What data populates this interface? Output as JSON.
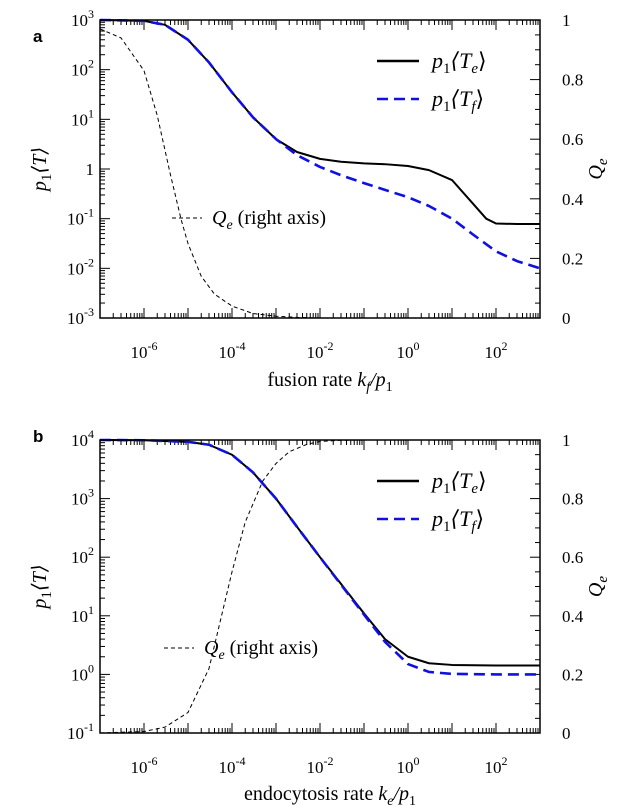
{
  "chart_data": [
    {
      "panel": "a",
      "type": "line",
      "title": "",
      "xlabel": {
        "main": "fusion rate ",
        "var": "k",
        "sub": "f",
        "tail": "/p",
        "tail_sub": "1"
      },
      "ylabel": {
        "var": "p",
        "sub": "1",
        "rest": "⟨T⟩"
      },
      "y2label": {
        "var": "Q",
        "sub": "e"
      },
      "xscale": "log",
      "yscale": "log",
      "xlim": [
        1e-07,
        1000
      ],
      "ylim": [
        0.001,
        1000
      ],
      "y2lim": [
        0,
        1
      ],
      "xticks": [
        {
          "value": 1e-06,
          "base": "10",
          "exp": "-6"
        },
        {
          "value": 0.0001,
          "base": "10",
          "exp": "-4"
        },
        {
          "value": 0.01,
          "base": "10",
          "exp": "-2"
        },
        {
          "value": 1,
          "base": "10",
          "exp": "0"
        },
        {
          "value": 100,
          "base": "10",
          "exp": "2"
        }
      ],
      "yticks": [
        {
          "value": 0.001,
          "base": "10",
          "exp": "-3"
        },
        {
          "value": 0.01,
          "base": "10",
          "exp": "-2"
        },
        {
          "value": 0.1,
          "base": "10",
          "exp": "-1"
        },
        {
          "value": 1,
          "base": "1",
          "exp": ""
        },
        {
          "value": 10,
          "base": "10",
          "exp": "1"
        },
        {
          "value": 100,
          "base": "10",
          "exp": "2"
        },
        {
          "value": 1000,
          "base": "10",
          "exp": "3"
        }
      ],
      "y2ticks": [
        {
          "value": 0,
          "label": "0"
        },
        {
          "value": 0.2,
          "label": "0.2"
        },
        {
          "value": 0.4,
          "label": "0.4"
        },
        {
          "value": 0.6,
          "label": "0.6"
        },
        {
          "value": 0.8,
          "label": "0.8"
        },
        {
          "value": 1,
          "label": "1"
        }
      ],
      "legend": [
        {
          "var": "p",
          "sub": "1",
          "rest": "⟨T",
          "sub2": "e",
          "close": "⟩",
          "style": "solid",
          "color": "#000000"
        },
        {
          "var": "p",
          "sub": "1",
          "rest": "⟨T",
          "sub2": "f",
          "close": "⟩",
          "style": "dashed",
          "color": "#1010e0"
        }
      ],
      "annotation": {
        "var": "Q",
        "sub": "e",
        "rest": " (right axis)"
      },
      "series": [
        {
          "key": "Te",
          "axis": "left",
          "style": "solid",
          "color": "#000000",
          "x": [
            1e-07,
            1e-06,
            3e-06,
            1e-05,
            3e-05,
            0.0001,
            0.0003,
            0.001,
            0.003,
            0.01,
            0.03,
            0.1,
            0.3,
            1,
            3,
            10,
            30,
            60,
            100,
            300,
            1000
          ],
          "y": [
            1000,
            960,
            800,
            400,
            140,
            35,
            11,
            4,
            2.2,
            1.6,
            1.4,
            1.3,
            1.25,
            1.15,
            0.95,
            0.6,
            0.2,
            0.1,
            0.08,
            0.078,
            0.078
          ]
        },
        {
          "key": "Tf",
          "axis": "left",
          "style": "dashed",
          "color": "#1010e0",
          "x": [
            1e-07,
            1e-06,
            3e-06,
            1e-05,
            3e-05,
            0.0001,
            0.0003,
            0.001,
            0.003,
            0.01,
            0.03,
            0.1,
            0.3,
            1,
            3,
            10,
            30,
            100,
            300,
            1000
          ],
          "y": [
            1000,
            960,
            800,
            400,
            140,
            35,
            11,
            4,
            1.9,
            1.1,
            0.75,
            0.52,
            0.38,
            0.27,
            0.18,
            0.1,
            0.048,
            0.022,
            0.014,
            0.01
          ]
        },
        {
          "key": "Qe",
          "axis": "right",
          "style": "thin-dashed",
          "color": "#000000",
          "x": [
            1e-07,
            3e-07,
            1e-06,
            2e-06,
            4e-06,
            7e-06,
            1e-05,
            2e-05,
            4e-05,
            0.0001,
            0.0003,
            0.001,
            0.003,
            0.01
          ],
          "y": [
            0.97,
            0.94,
            0.83,
            0.68,
            0.48,
            0.33,
            0.25,
            0.14,
            0.08,
            0.04,
            0.015,
            0.006,
            0.002,
            0
          ]
        }
      ]
    },
    {
      "panel": "b",
      "type": "line",
      "title": "",
      "xlabel": {
        "main": "endocytosis rate ",
        "var": "k",
        "sub": "e",
        "tail": "/p",
        "tail_sub": "1"
      },
      "ylabel": {
        "var": "p",
        "sub": "1",
        "rest": "⟨T⟩"
      },
      "y2label": {
        "var": "Q",
        "sub": "e"
      },
      "xscale": "log",
      "yscale": "log",
      "xlim": [
        1e-07,
        1000
      ],
      "ylim": [
        0.1,
        10000
      ],
      "y2lim": [
        0,
        1
      ],
      "xticks": [
        {
          "value": 1e-06,
          "base": "10",
          "exp": "-6"
        },
        {
          "value": 0.0001,
          "base": "10",
          "exp": "-4"
        },
        {
          "value": 0.01,
          "base": "10",
          "exp": "-2"
        },
        {
          "value": 1,
          "base": "10",
          "exp": "0"
        },
        {
          "value": 100,
          "base": "10",
          "exp": "2"
        }
      ],
      "yticks": [
        {
          "value": 0.1,
          "base": "10",
          "exp": "-1"
        },
        {
          "value": 1,
          "base": "10",
          "exp": "0"
        },
        {
          "value": 10,
          "base": "10",
          "exp": "1"
        },
        {
          "value": 100,
          "base": "10",
          "exp": "2"
        },
        {
          "value": 1000,
          "base": "10",
          "exp": "3"
        },
        {
          "value": 10000,
          "base": "10",
          "exp": "4"
        }
      ],
      "y2ticks": [
        {
          "value": 0,
          "label": "0"
        },
        {
          "value": 0.2,
          "label": "0.2"
        },
        {
          "value": 0.4,
          "label": "0.4"
        },
        {
          "value": 0.6,
          "label": "0.6"
        },
        {
          "value": 0.8,
          "label": "0.8"
        },
        {
          "value": 1,
          "label": "1"
        }
      ],
      "legend": [
        {
          "var": "p",
          "sub": "1",
          "rest": "⟨T",
          "sub2": "e",
          "close": "⟩",
          "style": "solid",
          "color": "#000000"
        },
        {
          "var": "p",
          "sub": "1",
          "rest": "⟨T",
          "sub2": "f",
          "close": "⟩",
          "style": "dashed",
          "color": "#1010e0"
        }
      ],
      "annotation": {
        "var": "Q",
        "sub": "e",
        "rest": " (right axis)"
      },
      "series": [
        {
          "key": "Te",
          "axis": "left",
          "style": "solid",
          "color": "#000000",
          "x": [
            1e-07,
            1e-06,
            1e-05,
            3e-05,
            0.0001,
            0.0003,
            0.001,
            0.003,
            0.01,
            0.03,
            0.1,
            0.3,
            1,
            3,
            10,
            100,
            1000
          ],
          "y": [
            10000,
            9900,
            9300,
            8300,
            5600,
            2800,
            1000,
            330,
            100,
            35,
            11,
            4,
            2,
            1.55,
            1.45,
            1.42,
            1.42
          ]
        },
        {
          "key": "Tf",
          "axis": "left",
          "style": "dashed",
          "color": "#1010e0",
          "x": [
            1e-07,
            1e-06,
            1e-05,
            3e-05,
            0.0001,
            0.0003,
            0.001,
            0.003,
            0.01,
            0.03,
            0.1,
            0.3,
            1,
            3,
            10,
            100,
            1000
          ],
          "y": [
            10000,
            9900,
            9300,
            8300,
            5600,
            2800,
            1000,
            330,
            100,
            34,
            10.5,
            3.6,
            1.5,
            1.1,
            1.02,
            1.0,
            1.0
          ]
        },
        {
          "key": "Qe",
          "axis": "right",
          "style": "thin-dashed",
          "color": "#000000",
          "x": [
            1e-07,
            1e-06,
            3e-06,
            1e-05,
            3e-05,
            0.0001,
            0.0002,
            0.0005,
            0.001,
            0.002,
            0.005,
            0.01,
            0.03,
            0.1
          ],
          "y": [
            0,
            0.005,
            0.02,
            0.07,
            0.22,
            0.55,
            0.72,
            0.86,
            0.92,
            0.96,
            0.985,
            0.995,
            0.999,
            1.0
          ]
        }
      ]
    }
  ]
}
